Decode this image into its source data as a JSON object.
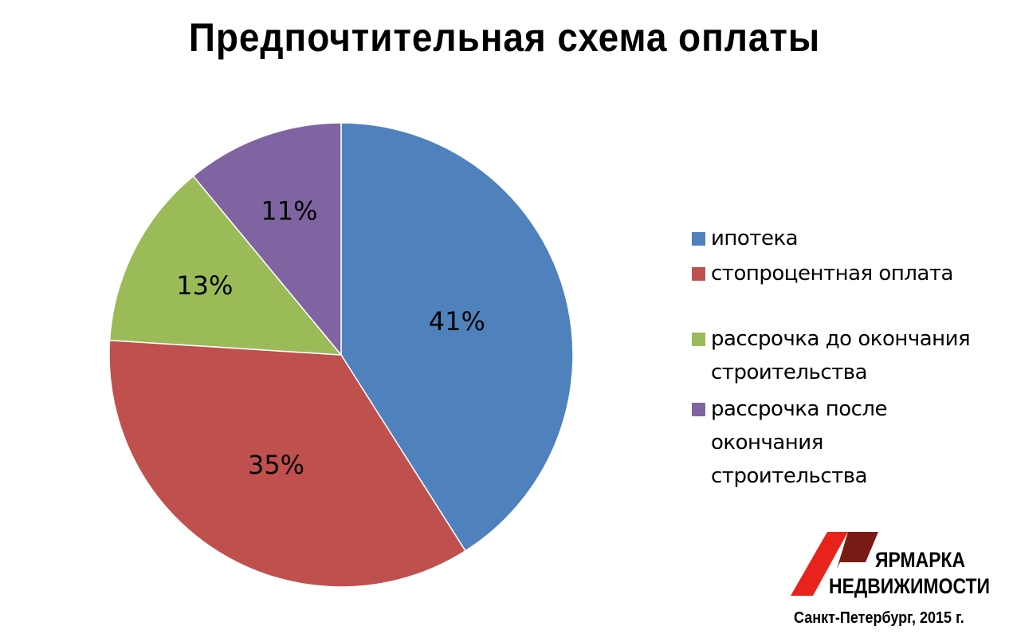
{
  "chart_data": {
    "type": "pie",
    "title": "Предпочтительная схема оплаты",
    "start_angle": "12 o'clock, clockwise",
    "legend_position": "right",
    "slices": [
      {
        "name": "ипотека",
        "value": 41,
        "label": "41%",
        "color": "#4F81BD"
      },
      {
        "name": "стопроцентная оплата",
        "value": 35,
        "label": "35%",
        "color": "#C0504D"
      },
      {
        "name": "рассрочка до окончания строительства",
        "value": 13,
        "label": "13%",
        "color": "#9BBB59"
      },
      {
        "name": "рассрочка после окончания строительства",
        "value": 11,
        "label": "11%",
        "color": "#8064A2"
      }
    ]
  },
  "legend": {
    "items": [
      {
        "lines": [
          "ипотека"
        ],
        "color": "#4F81BD"
      },
      {
        "lines": [
          "стопроцентная оплата"
        ],
        "color": "#C0504D"
      },
      {
        "lines": [
          "рассрочка до окончания",
          "строительства"
        ],
        "color": "#9BBB59"
      },
      {
        "lines": [
          "рассрочка после окончания",
          "строительства"
        ],
        "color": "#8064A2"
      }
    ]
  },
  "logo": {
    "line1": "ЯРМАРКА",
    "line2": "НЕДВИЖИМОСТИ",
    "colors": {
      "red": "#E8231C",
      "dark_red": "#7A1A14"
    }
  },
  "footer": {
    "note": "Санкт-Петербург, 2015 г."
  }
}
